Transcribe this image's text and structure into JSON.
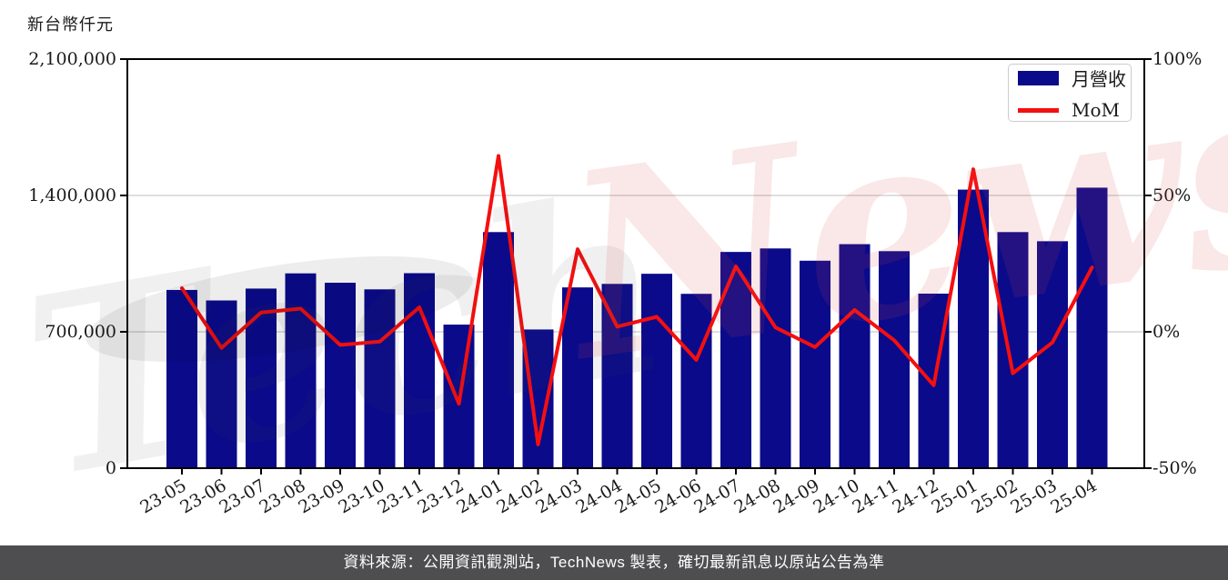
{
  "chart": {
    "unit_label": "新台幣仟元",
    "footer": "資料來源：公開資訊觀測站，TechNews 製表，確切最新訊息以原站公告為準",
    "watermark": {
      "part1": "Tech",
      "part2": "News"
    },
    "legend": [
      {
        "label": "月營收",
        "type": "bar"
      },
      {
        "label": "MoM",
        "type": "line"
      }
    ],
    "colors": {
      "bar": "#0A0A8B",
      "line": "#F50F0F",
      "grid": "#C9C9C9",
      "axis": "#000000",
      "tick_text": "#1a1a1a",
      "legend_border": "#CCCCCC",
      "footer_bg": "#4E4E50",
      "footer_text": "#FFFFFF",
      "watermark_gray": "rgba(60,60,60,0.08)",
      "watermark_pink": "rgba(214,70,70,0.13)"
    }
  },
  "chart_data": {
    "type": "bar",
    "title": "",
    "xlabel": "",
    "ylabel": "新台幣仟元",
    "grid": true,
    "legend_position": "top-right",
    "categories": [
      "23-05",
      "23-06",
      "23-07",
      "23-08",
      "23-09",
      "23-10",
      "23-11",
      "23-12",
      "24-01",
      "24-02",
      "24-03",
      "24-04",
      "24-05",
      "24-06",
      "24-07",
      "24-08",
      "24-09",
      "24-10",
      "24-11",
      "24-12",
      "25-01",
      "25-02",
      "25-03",
      "25-04"
    ],
    "series": [
      {
        "name": "月營收",
        "type": "bar",
        "axis": "left",
        "unit": "NTD thousand",
        "values": [
          915000,
          861000,
          922000,
          1000000,
          952000,
          918000,
          1001000,
          737000,
          1212000,
          712000,
          928000,
          946000,
          998000,
          895000,
          1110000,
          1128000,
          1065000,
          1150000,
          1114000,
          896000,
          1430000,
          1212000,
          1165000,
          1440000
        ]
      },
      {
        "name": "MoM",
        "type": "line",
        "axis": "right",
        "unit": "%",
        "values": [
          16.0,
          -5.9,
          7.1,
          8.5,
          -4.8,
          -3.6,
          9.0,
          -26.4,
          64.5,
          -41.3,
          30.3,
          1.9,
          5.5,
          -10.3,
          24.0,
          1.6,
          -5.6,
          8.0,
          -3.1,
          -19.6,
          59.6,
          -15.2,
          -3.9,
          23.6
        ]
      }
    ],
    "left_axis": {
      "range": [
        0,
        2100000
      ],
      "ticks": [
        0,
        700000,
        1400000,
        2100000
      ],
      "tick_labels": [
        "0",
        "700,000",
        "1,400,000",
        "2,100,000"
      ]
    },
    "right_axis": {
      "range": [
        -50,
        100
      ],
      "ticks": [
        -50,
        0,
        50,
        100
      ],
      "tick_labels": [
        "-50%",
        "0%",
        "50%",
        "100%"
      ]
    }
  }
}
